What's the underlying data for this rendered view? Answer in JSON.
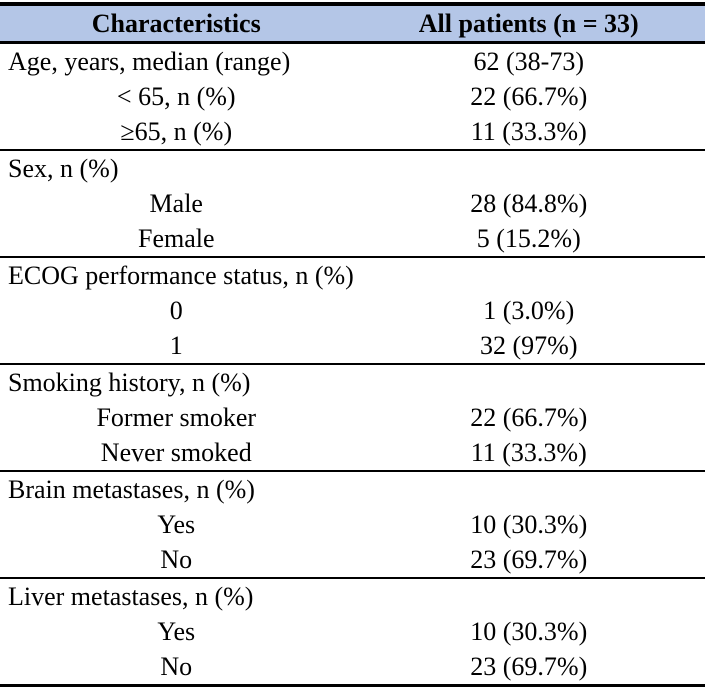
{
  "accent": {
    "header_bg": "#b4c6e7",
    "border_color": "#000000",
    "text_color": "#000000"
  },
  "table": {
    "header": {
      "characteristics": "Characteristics",
      "all_patients": "All patients (n = 33)"
    },
    "sections": [
      {
        "label": "Age, years, median (range)",
        "value": "62 (38-73)",
        "items": [
          {
            "label": "< 65, n (%)",
            "value": "22 (66.7%)"
          },
          {
            "label": "≥65, n (%)",
            "value": "11 (33.3%)"
          }
        ]
      },
      {
        "label": "Sex, n (%)",
        "value": "",
        "items": [
          {
            "label": "Male",
            "value": "28 (84.8%)"
          },
          {
            "label": "Female",
            "value": "5 (15.2%)"
          }
        ]
      },
      {
        "label": "ECOG performance status, n (%)",
        "value": "",
        "items": [
          {
            "label": "0",
            "value": "1 (3.0%)"
          },
          {
            "label": "1",
            "value": "32 (97%)"
          }
        ]
      },
      {
        "label": "Smoking history, n (%)",
        "value": "",
        "items": [
          {
            "label": "Former smoker",
            "value": "22 (66.7%)"
          },
          {
            "label": "Never smoked",
            "value": "11 (33.3%)"
          }
        ]
      },
      {
        "label": "Brain metastases, n (%)",
        "value": "",
        "items": [
          {
            "label": "Yes",
            "value": "10 (30.3%)"
          },
          {
            "label": "No",
            "value": "23 (69.7%)"
          }
        ]
      },
      {
        "label": "Liver metastases, n (%)",
        "value": "",
        "items": [
          {
            "label": "Yes",
            "value": "10 (30.3%)"
          },
          {
            "label": "No",
            "value": "23 (69.7%)"
          }
        ]
      }
    ]
  }
}
